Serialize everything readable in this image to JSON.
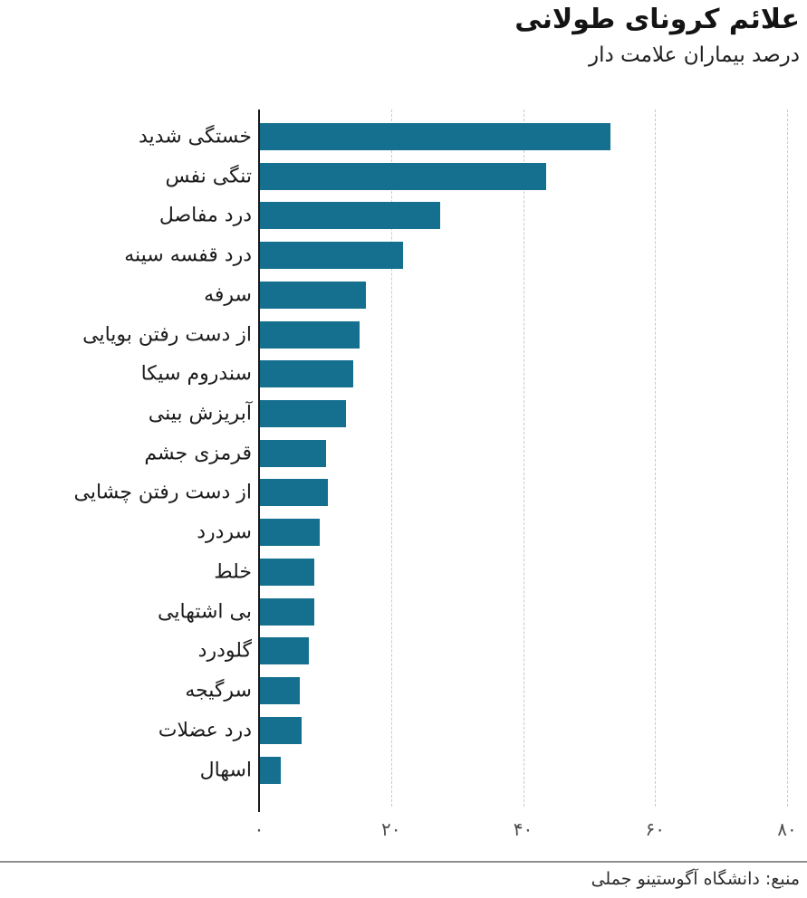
{
  "header": {
    "title": "علائم کرونای طولانی",
    "subtitle": "درصد بیماران علامت دار"
  },
  "chart_data": {
    "type": "bar",
    "orientation": "horizontal",
    "title": "علائم کرونای طولانی",
    "subtitle": "درصد بیماران علامت دار",
    "xlabel": "",
    "ylabel": "",
    "xlim": [
      0,
      80
    ],
    "grid": "dashed-vertical",
    "legend": "none",
    "bar_color": "#15708f",
    "axis_color": "#1a1a1a",
    "grid_color": "#c9c9c9",
    "categories": [
      "خستگی شدید",
      "تنگی نفس",
      "درد مفاصل",
      "درد قفسه سینه",
      "سرفه",
      "از دست رفتن بویایی",
      "سندروم سیکا",
      "آبریزش بینی",
      "قرمزی جشم",
      "از دست رفتن چشایی",
      "سردرد",
      "خلط",
      "بی اشتهایی",
      "گلودرد",
      "سرگیجه",
      "درد عضلات",
      "اسهال"
    ],
    "values": [
      53.1,
      43.4,
      27.3,
      21.7,
      16.0,
      15.1,
      14.2,
      13.1,
      10.0,
      10.3,
      9.1,
      8.2,
      8.3,
      7.4,
      6.1,
      6.3,
      3.2
    ],
    "x_ticks": [
      {
        "value": 0,
        "label": "۰"
      },
      {
        "value": 20,
        "label": "۲۰"
      },
      {
        "value": 40,
        "label": "۴۰"
      },
      {
        "value": 60,
        "label": "۶۰"
      },
      {
        "value": 80,
        "label": "۸۰"
      }
    ]
  },
  "footer": {
    "source": "منبع: دانشگاه آگوستینو جملی"
  }
}
